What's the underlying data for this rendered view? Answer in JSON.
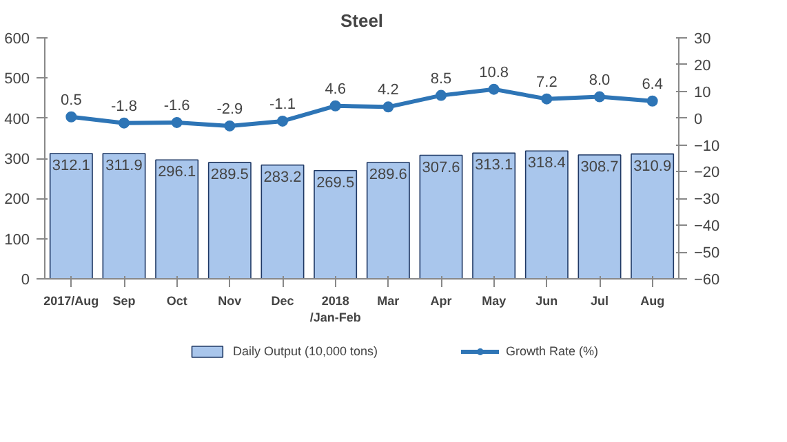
{
  "chart_data": {
    "type": "bar",
    "title": "Steel",
    "categories": [
      "2017/Aug",
      "Sep",
      "Oct",
      "Nov",
      "Dec",
      "2018\n/Jan-Feb",
      "Mar",
      "Apr",
      "May",
      "Jun",
      "Jul",
      "Aug"
    ],
    "series": [
      {
        "name": "Daily Output (10,000 tons)",
        "color": "#a9c6ec",
        "values": [
          312.1,
          311.9,
          296.1,
          289.5,
          283.2,
          269.5,
          289.6,
          307.6,
          313.1,
          318.4,
          308.7,
          310.9
        ],
        "value_labels": [
          "312.1",
          "311.9",
          "296.1",
          "289.5",
          "283.2",
          "269.5",
          "289.6",
          "307.6",
          "313.1",
          "318.4",
          "308.7",
          "310.9"
        ]
      },
      {
        "name": "Growth Rate (%)",
        "type": "line",
        "axis": "y2",
        "color": "#2e75b6",
        "marker": "circle",
        "values": [
          0.5,
          -1.8,
          -1.6,
          -2.9,
          -1.1,
          4.6,
          4.2,
          8.5,
          10.8,
          7.2,
          8.0,
          6.4
        ],
        "value_labels": [
          "0.5",
          "-1.8",
          "-1.6",
          "-2.9",
          "-1.1",
          "4.6",
          "4.2",
          "8.5",
          "10.8",
          "7.2",
          "8.0",
          "6.4"
        ]
      }
    ],
    "ylim": [
      0,
      600
    ],
    "yticks": [
      0,
      100,
      200,
      300,
      400,
      500,
      600
    ],
    "y2lim": [
      -60,
      30
    ],
    "y2ticks": [
      -60,
      -50,
      -40,
      -30,
      -20,
      -10,
      0,
      10,
      20,
      30
    ],
    "grid": false,
    "legend": "bottom"
  }
}
